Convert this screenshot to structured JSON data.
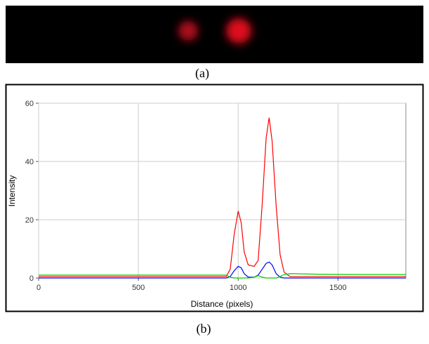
{
  "figure_labels": [
    "(a)",
    "(b)"
  ],
  "chart_data": {
    "type": "line",
    "ylabel": "Intensity",
    "xlabel": "Distance (pixels)",
    "x": [
      0,
      200,
      400,
      600,
      800,
      940,
      960,
      980,
      1000,
      1015,
      1030,
      1050,
      1080,
      1100,
      1120,
      1140,
      1155,
      1170,
      1190,
      1210,
      1230,
      1260,
      1400,
      1600,
      1840
    ],
    "series": [
      {
        "color": "#ff0000",
        "values": [
          0.5,
          0.5,
          0.5,
          0.5,
          0.5,
          0.5,
          3,
          15,
          23,
          19,
          9,
          4.5,
          4,
          6,
          25,
          48,
          55,
          47,
          25,
          8,
          2,
          0.5,
          0.5,
          0.5,
          0.5
        ]
      },
      {
        "color": "#0000ff",
        "values": [
          0,
          0,
          0,
          0,
          0,
          0,
          0.5,
          2.5,
          4,
          3.5,
          1.5,
          0.3,
          0.3,
          1,
          3,
          5,
          5.5,
          4.5,
          1.5,
          0.3,
          0,
          0,
          0,
          0,
          0
        ]
      },
      {
        "color": "#00cc00",
        "values": [
          1,
          1,
          1,
          1,
          1,
          1,
          0.3,
          0,
          0,
          0,
          0,
          0,
          0.3,
          0.8,
          0.3,
          0,
          0,
          0,
          0,
          0.5,
          1.2,
          1.5,
          1.3,
          1.2,
          1.2
        ]
      }
    ],
    "xlim": [
      0,
      1840
    ],
    "ylim": [
      0,
      60
    ],
    "xticks": [
      0,
      500,
      1000,
      1500
    ],
    "yticks": [
      0,
      20,
      40,
      60
    ],
    "grid": true
  }
}
